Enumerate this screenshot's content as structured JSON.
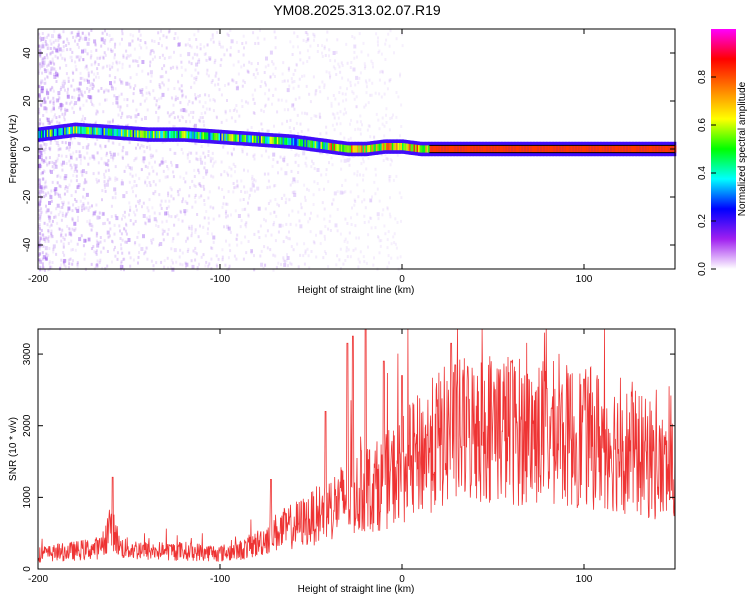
{
  "title": "YM08.2025.313.02.07.R19",
  "chart_data": [
    {
      "type": "heatmap",
      "xlabel": "Height of straight line (km)",
      "ylabel": "Frequency (Hz)",
      "xlim": [
        -200,
        150
      ],
      "ylim": [
        -50,
        50
      ],
      "x_ticks": [
        -200,
        -100,
        0,
        100
      ],
      "x_tick_labels": [
        "-200",
        "-100",
        "0",
        "100"
      ],
      "y_ticks": [
        -40,
        -20,
        0,
        20,
        40
      ],
      "y_tick_labels": [
        "-40",
        "-20",
        "0",
        "20",
        "40"
      ],
      "dominant_frequency": {
        "x": [
          -200,
          -180,
          -160,
          -140,
          -120,
          -100,
          -80,
          -60,
          -40,
          -30,
          -20,
          -10,
          0,
          10,
          20,
          150
        ],
        "y": [
          6,
          8,
          7,
          6,
          6,
          5,
          4,
          3,
          1,
          0,
          0,
          1,
          1,
          0,
          0,
          0
        ]
      },
      "colorbar": {
        "label": "Normalized spectral amplitude",
        "range": [
          0,
          1
        ],
        "ticks": [
          0,
          0.2,
          0.4,
          0.6,
          0.8
        ],
        "tick_labels": [
          "0.0",
          "0.2",
          "0.4",
          "0.6",
          "0.8"
        ],
        "colors": [
          "#ffffff",
          "#a020f0",
          "#0000ff",
          "#00ffff",
          "#00ff00",
          "#ffff00",
          "#ff8000",
          "#ff0000",
          "#ff00ff"
        ]
      },
      "grid": false
    },
    {
      "type": "line",
      "xlabel": "Height of straight line (km)",
      "ylabel": "SNR (10 * v/v)",
      "xlim": [
        -200,
        150
      ],
      "ylim": [
        0,
        3350
      ],
      "x_ticks": [
        -200,
        -100,
        0,
        100
      ],
      "x_tick_labels": [
        "-200",
        "-100",
        "0",
        "100"
      ],
      "y_ticks": [
        0,
        1000,
        2000,
        3000
      ],
      "y_tick_labels": [
        "0",
        "1000",
        "2000",
        "3000"
      ],
      "color": "#ee3333",
      "envelope": {
        "x": [
          -200,
          -180,
          -165,
          -160,
          -155,
          -140,
          -120,
          -100,
          -90,
          -80,
          -70,
          -60,
          -50,
          -40,
          -30,
          -20,
          -10,
          0,
          10,
          20,
          30,
          40,
          50,
          60,
          70,
          80,
          90,
          100,
          110,
          120,
          130,
          140,
          150
        ],
        "y": [
          200,
          250,
          300,
          650,
          300,
          250,
          250,
          220,
          250,
          350,
          500,
          600,
          700,
          850,
          1000,
          1100,
          1200,
          1400,
          1600,
          1800,
          1900,
          1950,
          2000,
          1950,
          1900,
          1900,
          1850,
          1850,
          1800,
          1700,
          1600,
          1450,
          1300
        ]
      },
      "spikes": [
        {
          "x": -159,
          "y": 1280
        },
        {
          "x": -72,
          "y": 1250
        },
        {
          "x": -42,
          "y": 2200
        },
        {
          "x": -30,
          "y": 3150
        },
        {
          "x": -27,
          "y": 3250
        },
        {
          "x": -20,
          "y": 3350
        },
        {
          "x": -10,
          "y": 2900
        },
        {
          "x": 0,
          "y": 2700
        },
        {
          "x": 27,
          "y": 3150
        },
        {
          "x": 60,
          "y": 2900
        },
        {
          "x": 100,
          "y": 2650
        }
      ],
      "grid": false
    }
  ]
}
